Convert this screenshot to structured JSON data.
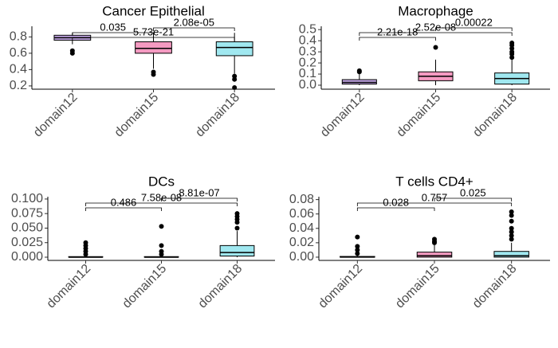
{
  "chart_data": [
    {
      "type": "box",
      "title": "Cancer Epithelial",
      "categories": [
        "domain12",
        "domain15",
        "domain18"
      ],
      "colors": [
        "#c5a8e8",
        "#f49ac1",
        "#a0e8f0"
      ],
      "boxes": [
        {
          "whislo": 0.71,
          "q1": 0.76,
          "med": 0.79,
          "q3": 0.82,
          "whishi": 0.85,
          "outliers": [
            0.6,
            0.63
          ]
        },
        {
          "whislo": 0.41,
          "q1": 0.6,
          "med": 0.66,
          "q3": 0.74,
          "whishi": 0.85,
          "outliers": [
            0.34,
            0.37
          ]
        },
        {
          "whislo": 0.35,
          "q1": 0.57,
          "med": 0.67,
          "q3": 0.74,
          "whishi": 0.85,
          "outliers": [
            0.18,
            0.28,
            0.32
          ]
        }
      ],
      "ylim": [
        0.16,
        0.93
      ],
      "yticks": [
        0.2,
        0.4,
        0.6,
        0.8
      ],
      "annotations": [
        {
          "label": "5.73e-21",
          "pair": [
            0,
            2
          ]
        },
        {
          "label": "0.035",
          "pair": [
            0,
            1
          ]
        },
        {
          "label": "2.08e-05",
          "pair": [
            1,
            2
          ]
        }
      ]
    },
    {
      "type": "box",
      "title": "Macrophage",
      "categories": [
        "domain12",
        "domain15",
        "domain18"
      ],
      "colors": [
        "#c5a8e8",
        "#f49ac1",
        "#a0e8f0"
      ],
      "boxes": [
        {
          "whislo": 0,
          "q1": 0.01,
          "med": 0.025,
          "q3": 0.05,
          "whishi": 0.1,
          "outliers": [
            0.12,
            0.13
          ]
        },
        {
          "whislo": 0,
          "q1": 0.04,
          "med": 0.08,
          "q3": 0.12,
          "whishi": 0.23,
          "outliers": [
            0.34
          ]
        },
        {
          "whislo": 0,
          "q1": 0.01,
          "med": 0.06,
          "q3": 0.11,
          "whishi": 0.23,
          "outliers": [
            0.25,
            0.28,
            0.3,
            0.33,
            0.36,
            0.38
          ]
        }
      ],
      "ylim": [
        -0.036,
        0.53
      ],
      "yticks": [
        {
          "value": 0,
          "label": "0.0"
        },
        0.1,
        0.2,
        0.3,
        0.4,
        0.5
      ],
      "annotations": [
        {
          "label": "2.21e-18",
          "pair": [
            0,
            1
          ]
        },
        {
          "label": "2.52e-08",
          "pair": [
            0,
            2
          ]
        },
        {
          "label": "0.00022",
          "pair": [
            1,
            2
          ]
        }
      ]
    },
    {
      "type": "box",
      "title": "DCs",
      "categories": [
        "domain12",
        "domain15",
        "domain18"
      ],
      "colors": [
        "#c5a8e8",
        "#f49ac1",
        "#a0e8f0"
      ],
      "boxes": [
        {
          "whislo": 0,
          "q1": 0,
          "med": 0,
          "q3": 0.001,
          "whishi": 0.002,
          "outliers": [
            0.005,
            0.01,
            0.015,
            0.02,
            0.025
          ]
        },
        {
          "whislo": 0,
          "q1": 0,
          "med": 0,
          "q3": 0.001,
          "whishi": 0.002,
          "outliers": [
            0.005,
            0.01,
            0.02,
            0.053
          ]
        },
        {
          "whislo": 0,
          "q1": 0.002,
          "med": 0.008,
          "q3": 0.02,
          "whishi": 0.045,
          "outliers": [
            0.05,
            0.06,
            0.065,
            0.07,
            0.075
          ]
        }
      ],
      "ylim": [
        -0.0055,
        0.104
      ],
      "yticks": [
        {
          "value": 0,
          "label": "0.000"
        },
        {
          "value": 0.025,
          "label": "0.025"
        },
        {
          "value": 0.05,
          "label": "0.050"
        },
        {
          "value": 0.075,
          "label": "0.075"
        },
        {
          "value": 0.1,
          "label": "0.100"
        }
      ],
      "annotations": [
        {
          "label": "0.486",
          "pair": [
            0,
            1
          ]
        },
        {
          "label": "7.58e-08",
          "pair": [
            0,
            2
          ]
        },
        {
          "label": "8.81e-07",
          "pair": [
            1,
            2
          ]
        }
      ]
    },
    {
      "type": "box",
      "title": "T cells CD4+",
      "categories": [
        "domain12",
        "domain15",
        "domain18"
      ],
      "colors": [
        "#c5a8e8",
        "#f49ac1",
        "#a0e8f0"
      ],
      "boxes": [
        {
          "whislo": 0,
          "q1": 0,
          "med": 0,
          "q3": 0.001,
          "whishi": 0.002,
          "outliers": [
            0.005,
            0.01,
            0.015,
            0.028
          ]
        },
        {
          "whislo": 0,
          "q1": 0,
          "med": 0.002,
          "q3": 0.007,
          "whishi": 0.017,
          "outliers": [
            0.02,
            0.022,
            0.025
          ]
        },
        {
          "whislo": 0,
          "q1": 0,
          "med": 0.002,
          "q3": 0.008,
          "whishi": 0.02,
          "outliers": [
            0.025,
            0.03,
            0.035,
            0.04,
            0.05,
            0.058,
            0.063
          ]
        }
      ],
      "ylim": [
        -0.0045,
        0.084
      ],
      "yticks": [
        {
          "value": 0,
          "label": "0.00"
        },
        0.02,
        0.04,
        0.06,
        0.08
      ],
      "annotations": [
        {
          "label": "0.028",
          "pair": [
            0,
            1
          ]
        },
        {
          "label": "0.757",
          "pair": [
            0,
            2
          ]
        },
        {
          "label": "0.025",
          "pair": [
            1,
            2
          ]
        }
      ]
    }
  ]
}
